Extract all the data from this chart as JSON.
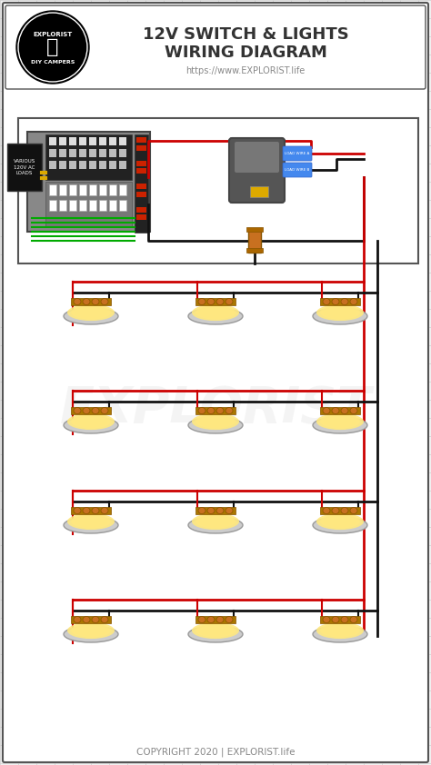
{
  "title_line1": "12V SWITCH & LIGHTS",
  "title_line2": "WIRING DIAGRAM",
  "subtitle": "https://www.EXPLORIST.life",
  "copyright": "COPYRIGHT 2020 | EXPLORIST.life",
  "bg_color": "#f0f0f0",
  "grid_color": "#d0d0d0",
  "border_color": "#555555",
  "title_color": "#333333",
  "red_wire": "#cc0000",
  "black_wire": "#111111",
  "light_fill": "#ffe880",
  "light_rim": "#cccccc",
  "fuse_color": "#c87020"
}
